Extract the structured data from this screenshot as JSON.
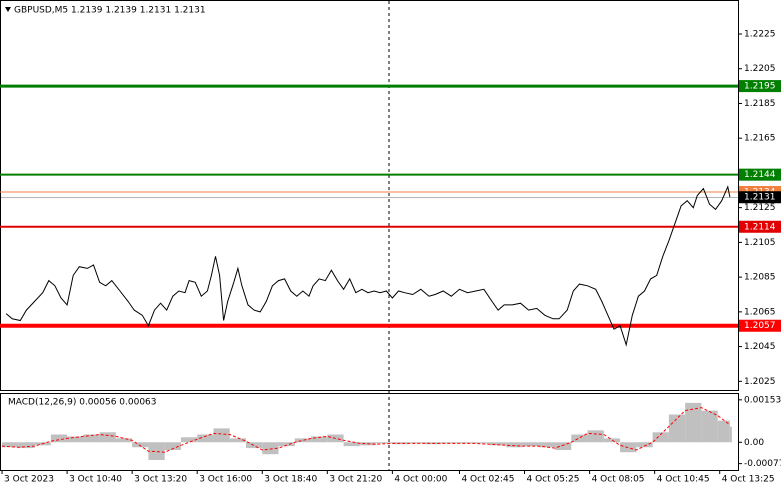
{
  "chart_data": [
    {
      "type": "line",
      "title": "GBPUSD,M5  1.2139 1.2139 1.2131 1.2131",
      "color": "#000000",
      "xlim": [
        -1,
        362
      ],
      "ylim": [
        1.202,
        1.2244
      ],
      "yticks": [
        1.2025,
        1.2045,
        1.2065,
        1.2085,
        1.2105,
        1.2125,
        1.2165,
        1.2185,
        1.2205,
        1.2225
      ],
      "x": [
        2,
        5,
        9,
        12,
        16,
        20,
        23,
        26,
        29,
        32,
        35,
        38,
        42,
        45,
        48,
        51,
        54,
        58,
        62,
        65,
        69,
        72,
        75,
        78,
        81,
        84,
        87,
        90,
        92,
        95,
        98,
        101,
        103,
        105,
        107,
        109,
        111,
        114,
        116,
        118,
        121,
        124,
        127,
        130,
        133,
        136,
        139,
        142,
        145,
        148,
        151,
        153,
        156,
        159,
        162,
        165,
        168,
        171,
        174,
        177,
        180,
        183,
        186,
        189,
        192,
        195,
        198,
        202,
        206,
        210,
        213,
        217,
        221,
        225,
        229,
        233,
        237,
        241,
        244,
        247,
        251,
        255,
        259,
        263,
        267,
        271,
        274,
        278,
        281,
        284,
        288,
        292,
        295,
        298,
        301,
        304,
        307,
        310,
        313,
        316,
        319,
        322,
        325,
        328,
        331,
        334,
        337,
        340,
        342,
        345,
        348,
        351,
        354,
        357,
        358
      ],
      "values": [
        1.2064,
        1.2061,
        1.206,
        1.2066,
        1.2071,
        1.2076,
        1.2083,
        1.208,
        1.2073,
        1.2069,
        1.2086,
        1.2091,
        1.209,
        1.2092,
        1.2082,
        1.208,
        1.2083,
        1.2077,
        1.2071,
        1.2066,
        1.2063,
        1.2057,
        1.2066,
        1.207,
        1.2066,
        1.2074,
        1.2077,
        1.2076,
        1.2083,
        1.2082,
        1.2074,
        1.2077,
        1.2086,
        1.2097,
        1.2086,
        1.206,
        1.2071,
        1.2082,
        1.209,
        1.208,
        1.2069,
        1.2066,
        1.2065,
        1.2071,
        1.208,
        1.2083,
        1.2084,
        1.2077,
        1.2074,
        1.2077,
        1.2074,
        1.208,
        1.2084,
        1.2083,
        1.2089,
        1.2083,
        1.2078,
        1.2084,
        1.2076,
        1.2078,
        1.2076,
        1.2077,
        1.2076,
        1.2077,
        1.2073,
        1.2077,
        1.2076,
        1.2075,
        1.2078,
        1.2074,
        1.2075,
        1.2077,
        1.2074,
        1.2078,
        1.2076,
        1.2077,
        1.2078,
        1.2071,
        1.2066,
        1.2069,
        1.2069,
        1.207,
        1.2066,
        1.2067,
        1.2063,
        1.2061,
        1.2061,
        1.2066,
        1.2077,
        1.2081,
        1.208,
        1.2078,
        1.2071,
        1.2063,
        1.2055,
        1.2057,
        1.2046,
        1.2063,
        1.2074,
        1.2077,
        1.2084,
        1.2086,
        1.2097,
        1.2106,
        1.2116,
        1.2126,
        1.2129,
        1.2125,
        1.2132,
        1.2136,
        1.2127,
        1.2124,
        1.2129,
        1.2137,
        1.2131
      ],
      "levels": [
        {
          "value": 1.2195,
          "color": "#007f00",
          "width": 3
        },
        {
          "value": 1.2144,
          "color": "#007f00",
          "width": 2
        },
        {
          "value": 1.2134,
          "color": "#f08040",
          "width": 1
        },
        {
          "value": 1.2131,
          "color": "#000000",
          "width": 0.3
        },
        {
          "value": 1.2114,
          "color": "#e00000",
          "width": 2
        },
        {
          "value": 1.2057,
          "color": "#ff0000",
          "width": 4
        }
      ]
    },
    {
      "type": "macd",
      "title": "MACD(12,26,9) 0.00056 0.00063",
      "xlim": [
        -1,
        362
      ],
      "ylim": [
        -0.001,
        0.00174
      ],
      "yticks": [
        -0.00077,
        {
          "value": 0,
          "label": "0.00"
        },
        0.00153
      ],
      "xticks": [
        {
          "value": 0,
          "label": "3 Oct 2023"
        },
        {
          "value": 32,
          "label": "3 Oct 10:40"
        },
        {
          "value": 64,
          "label": "3 Oct 13:20"
        },
        {
          "value": 96,
          "label": "3 Oct 16:00"
        },
        {
          "value": 128,
          "label": "3 Oct 18:40"
        },
        {
          "value": 160,
          "label": "3 Oct 21:20"
        },
        {
          "value": 192,
          "label": "4 Oct 00:00"
        },
        {
          "value": 225,
          "label": "4 Oct 02:45"
        },
        {
          "value": 257,
          "label": "4 Oct 05:25"
        },
        {
          "value": 289,
          "label": "4 Oct 08:05"
        },
        {
          "value": 321,
          "label": "4 Oct 10:45"
        },
        {
          "value": 353,
          "label": "4 Oct 13:25"
        }
      ],
      "x": [
        0,
        8,
        16,
        24,
        32,
        40,
        48,
        56,
        64,
        72,
        80,
        88,
        96,
        104,
        112,
        120,
        128,
        136,
        144,
        152,
        160,
        168,
        176,
        184,
        192,
        200,
        208,
        216,
        224,
        232,
        240,
        248,
        256,
        264,
        272,
        280,
        288,
        296,
        304,
        312,
        320,
        328,
        336,
        344,
        352,
        358
      ],
      "series": [
        {
          "color": "#c0c0c0",
          "values": [
            -0.00018,
            -0.00021,
            -0.00011,
            0.00028,
            0.00021,
            0.00028,
            0.00036,
            0.00014,
            -0.00018,
            -0.00064,
            -0.00028,
            0.00018,
            0.00028,
            0.0005,
            0.00014,
            -0.00021,
            -0.00043,
            -0.00014,
            0.00014,
            0.00021,
            0.00028,
            -0.00014,
            -0.00011,
            -4e-05,
            -7e-05,
            -4e-05,
            -7e-05,
            -4e-05,
            -4e-05,
            -4e-05,
            -0.00011,
            -0.00018,
            -0.00014,
            -0.00018,
            -0.00028,
            0.00028,
            0.00043,
            0.00014,
            -0.00036,
            -0.00018,
            0.00036,
            0.001,
            0.00142,
            0.00114,
            0.00078,
            0.00056
          ]
        },
        {
          "color": "#ff0000",
          "values": [
            -0.00014,
            -0.00018,
            -0.00014,
            4e-05,
            0.00014,
            0.00021,
            0.00028,
            0.00021,
            7e-05,
            -0.00032,
            -0.00036,
            -0.00011,
            0.00011,
            0.00032,
            0.00028,
            4e-05,
            -0.00028,
            -0.00021,
            0,
            0.00014,
            0.00021,
            7e-05,
            -4e-05,
            -7e-05,
            -4e-05,
            -4e-05,
            -4e-05,
            -4e-05,
            -4e-05,
            -4e-05,
            -7e-05,
            -0.00011,
            -0.00014,
            -0.00014,
            -0.00021,
            0,
            0.00032,
            0.00028,
            -0.00011,
            -0.00028,
            0,
            0.00057,
            0.00114,
            0.00125,
            0.00096,
            0.00063
          ]
        }
      ]
    }
  ]
}
